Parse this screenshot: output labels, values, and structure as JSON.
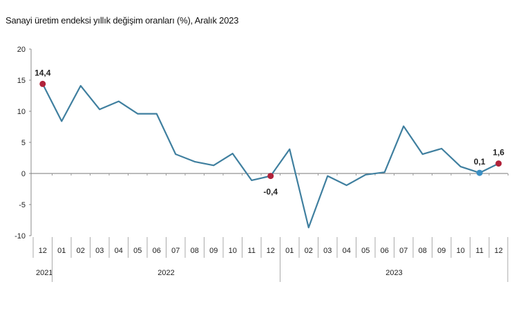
{
  "chart_data": {
    "type": "line",
    "title": "Sanayi üretim endeksi yıllık değişim oranları (%), Aralık 2023",
    "xlabel": "",
    "ylabel": "",
    "ylim": [
      -10,
      20
    ],
    "yticks": [
      20,
      15,
      10,
      5,
      0,
      -5,
      -10
    ],
    "grid": false,
    "categories": [
      "12",
      "01",
      "02",
      "03",
      "04",
      "05",
      "06",
      "07",
      "08",
      "09",
      "10",
      "11",
      "12",
      "01",
      "02",
      "03",
      "04",
      "05",
      "06",
      "07",
      "08",
      "09",
      "10",
      "11",
      "12"
    ],
    "year_groups": [
      {
        "label": "2021",
        "count": 1
      },
      {
        "label": "2022",
        "count": 12
      },
      {
        "label": "2023",
        "count": 12
      }
    ],
    "series": [
      {
        "values": [
          14.4,
          8.4,
          14.1,
          10.3,
          11.6,
          9.6,
          9.6,
          3.1,
          1.9,
          1.3,
          3.2,
          -1.1,
          -0.4,
          3.9,
          -8.7,
          -0.4,
          -1.9,
          -0.2,
          0.2,
          7.6,
          3.1,
          4.0,
          1.1,
          0.1,
          1.6
        ]
      }
    ],
    "annotations": [
      {
        "index": 0,
        "label": "14,4",
        "marker_color": "#b0223a",
        "position": "above"
      },
      {
        "index": 12,
        "label": "-0,4",
        "marker_color": "#b0223a",
        "position": "below"
      },
      {
        "index": 23,
        "label": "0,1",
        "marker_color": "#3a8fc4",
        "position": "above"
      },
      {
        "index": 24,
        "label": "1,6",
        "marker_color": "#b0223a",
        "position": "above"
      }
    ],
    "line_color": "#3f7f9f"
  }
}
